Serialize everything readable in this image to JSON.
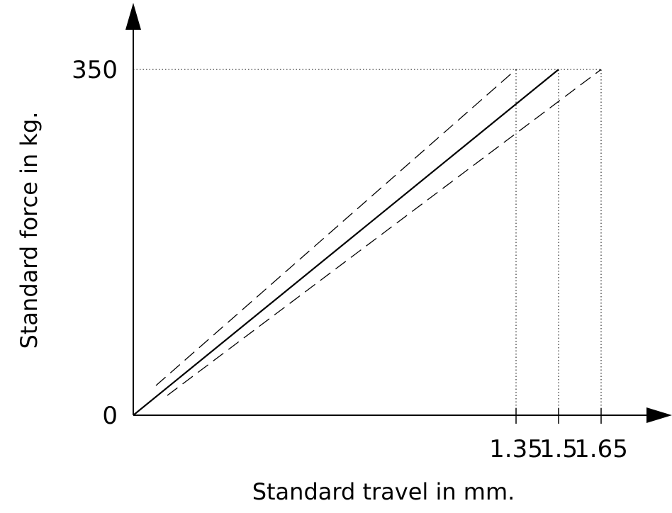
{
  "chart_data": {
    "type": "line",
    "xlabel": "Standard travel in mm.",
    "ylabel": "Standard force in kg.",
    "xlim": [
      0,
      1.65
    ],
    "ylim": [
      0,
      350
    ],
    "x_ticks": [
      {
        "value": 1.35,
        "label": "1.35"
      },
      {
        "value": 1.5,
        "label": "1.5"
      },
      {
        "value": 1.65,
        "label": "1.65"
      }
    ],
    "y_ticks": [
      {
        "value": 0,
        "label": "0"
      },
      {
        "value": 350,
        "label": "350"
      }
    ],
    "series": [
      {
        "style": "solid",
        "x": [
          0,
          1.5
        ],
        "y": [
          0,
          350
        ]
      },
      {
        "style": "dashed",
        "x": [
          0.08,
          1.35
        ],
        "y": [
          30,
          350
        ]
      },
      {
        "style": "dashed",
        "x": [
          0.12,
          1.65
        ],
        "y": [
          20,
          350
        ]
      }
    ],
    "reference_lines": [
      {
        "orientation": "vertical",
        "x": 1.35,
        "y": [
          0,
          350
        ],
        "style": "dotted"
      },
      {
        "orientation": "vertical",
        "x": 1.5,
        "y": [
          0,
          350
        ],
        "style": "dotted"
      },
      {
        "orientation": "vertical",
        "x": 1.65,
        "y": [
          0,
          350
        ],
        "style": "dotted"
      },
      {
        "orientation": "horizontal",
        "y": 350,
        "x": [
          0,
          1.65
        ],
        "style": "dotted"
      }
    ],
    "grid": false,
    "legend": "none"
  }
}
